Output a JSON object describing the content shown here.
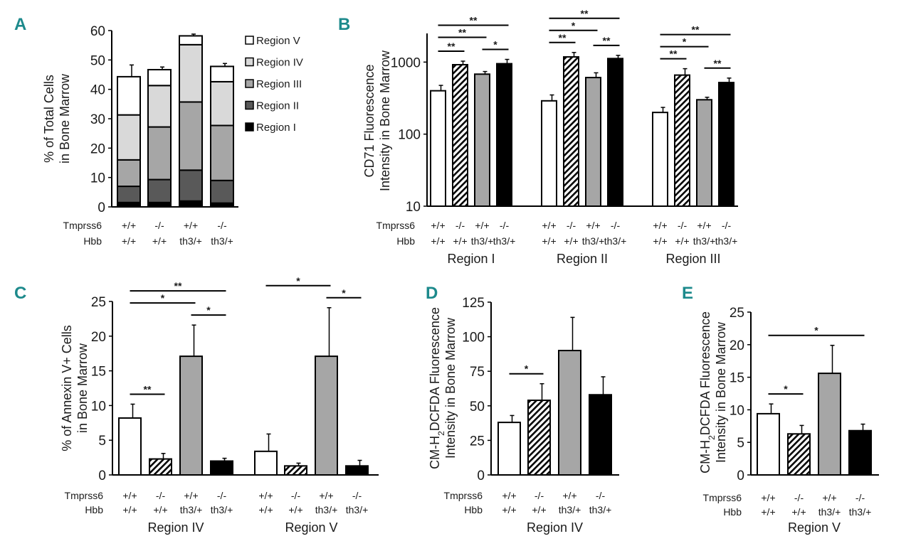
{
  "genotypes": {
    "row_labels": [
      "Tmprss6",
      "Hbb"
    ],
    "tmprss6": [
      "+/+",
      "-/-",
      "+/+",
      "-/-"
    ],
    "hbb": [
      "+/+",
      "+/+",
      "th3/+",
      "th3/+"
    ]
  },
  "colors": {
    "white": "#ffffff",
    "hatched": "#000000",
    "gray": "#a6a6a6",
    "black": "#000000",
    "letter": "#1d8a8c"
  },
  "chart_data": [
    {
      "panel": "A",
      "type": "bar",
      "stacked": true,
      "ylabel": [
        "% of Total Cells",
        "in Bone Marrow"
      ],
      "ylim": [
        0,
        60
      ],
      "yticks": [
        0,
        10,
        20,
        30,
        40,
        50,
        60
      ],
      "legend": [
        "Region V",
        "Region IV",
        "Region III",
        "Region II",
        "Region I"
      ],
      "legend_placement": "right",
      "series": [
        {
          "name": "Region I",
          "color": "#000000",
          "values": [
            1.5,
            1.5,
            2.0,
            1.3
          ],
          "errors": [
            0.3,
            0.2,
            0.3,
            0.2
          ]
        },
        {
          "name": "Region II",
          "color": "#595959",
          "values": [
            5.5,
            7.8,
            10.5,
            7.7
          ],
          "errors": [
            0.9,
            0.7,
            0.9,
            1.0
          ]
        },
        {
          "name": "Region III",
          "color": "#a6a6a6",
          "values": [
            9.0,
            17.9,
            23.2,
            18.7
          ],
          "errors": [
            0.6,
            1.1,
            2.6,
            0.6
          ]
        },
        {
          "name": "Region IV",
          "color": "#d9d9d9",
          "values": [
            15.3,
            14.1,
            19.5,
            14.9
          ],
          "errors": [
            0.7,
            2.5,
            1.5,
            3.4
          ]
        },
        {
          "name": "Region V",
          "color": "#ffffff",
          "values": [
            13.0,
            5.4,
            3.0,
            5.2
          ],
          "errors": [
            4.0,
            0.9,
            0.6,
            1.0
          ]
        }
      ]
    },
    {
      "panel": "B",
      "type": "bar",
      "yscale": "log",
      "ylabel": [
        "CD71 Fluorescence",
        "Intensity in Bone Marrow"
      ],
      "ylim": [
        10,
        2500
      ],
      "yticks": [
        10,
        100,
        1000
      ],
      "groups": [
        {
          "name": "Region I",
          "values": [
            400,
            920,
            680,
            950
          ],
          "errors": [
            75,
            110,
            60,
            140
          ],
          "annotations": [
            {
              "from": 0,
              "to": 1,
              "label": "**"
            },
            {
              "from": 2,
              "to": 3,
              "label": "*"
            },
            {
              "from": 0,
              "to": 2,
              "label": "**"
            },
            {
              "from": 0,
              "to": 3,
              "label": "**"
            }
          ]
        },
        {
          "name": "Region II",
          "values": [
            290,
            1180,
            610,
            1120
          ],
          "errors": [
            60,
            180,
            100,
            120
          ],
          "annotations": [
            {
              "from": 0,
              "to": 1,
              "label": "**"
            },
            {
              "from": 2,
              "to": 3,
              "label": "**"
            },
            {
              "from": 0,
              "to": 2,
              "label": "*"
            },
            {
              "from": 0,
              "to": 3,
              "label": "**"
            }
          ]
        },
        {
          "name": "Region III",
          "values": [
            200,
            660,
            300,
            520
          ],
          "errors": [
            35,
            150,
            25,
            80
          ],
          "annotations": [
            {
              "from": 2,
              "to": 3,
              "label": "**"
            },
            {
              "from": 0,
              "to": 1,
              "label": "**"
            },
            {
              "from": 0,
              "to": 2,
              "label": "*"
            },
            {
              "from": 0,
              "to": 3,
              "label": "**"
            }
          ]
        }
      ]
    },
    {
      "panel": "C",
      "type": "bar",
      "ylabel": [
        "% of Annexin V+ Cells",
        "in Bone Marrow"
      ],
      "ylim": [
        0,
        25
      ],
      "yticks": [
        0,
        5,
        10,
        15,
        20,
        25
      ],
      "groups": [
        {
          "name": "Region IV",
          "values": [
            8.2,
            2.3,
            17.1,
            2.0
          ],
          "errors": [
            2.0,
            0.8,
            4.5,
            0.4
          ],
          "annotations": [
            {
              "from": 0,
              "to": 1,
              "label": "**"
            },
            {
              "from": 2,
              "to": 3,
              "label": "*"
            },
            {
              "from": 0,
              "to": 2,
              "label": "*"
            },
            {
              "from": 0,
              "to": 3,
              "label": "**"
            }
          ]
        },
        {
          "name": "Region V",
          "values": [
            3.4,
            1.3,
            17.1,
            1.3
          ],
          "errors": [
            2.5,
            0.4,
            7.0,
            0.8
          ],
          "annotations": [
            {
              "from": 2,
              "to": 3,
              "label": "*"
            },
            {
              "from": 0,
              "to": 2,
              "label": "*"
            }
          ]
        }
      ]
    },
    {
      "panel": "D",
      "type": "bar",
      "ylabel": [
        "CM-H",
        "2",
        "DCFDA Fluorescence",
        "Intensity in Bone Marrow"
      ],
      "ylim": [
        0,
        125
      ],
      "yticks": [
        0,
        25,
        50,
        75,
        100,
        125
      ],
      "groups": [
        {
          "name": "Region IV",
          "values": [
            38,
            54,
            90,
            58
          ],
          "errors": [
            5,
            12,
            24,
            13
          ],
          "annotations": [
            {
              "from": 0,
              "to": 1,
              "label": "*"
            }
          ]
        }
      ]
    },
    {
      "panel": "E",
      "type": "bar",
      "ylabel": [
        "CM-H",
        "2",
        "DCFDA Fluorescence",
        "Intensity in Bone Marrow"
      ],
      "ylim": [
        0,
        25
      ],
      "yticks": [
        0,
        5,
        10,
        15,
        20,
        25
      ],
      "groups": [
        {
          "name": "Region V",
          "values": [
            9.4,
            6.3,
            15.6,
            6.8
          ],
          "errors": [
            1.5,
            1.3,
            4.3,
            1.0
          ],
          "annotations": [
            {
              "from": 0,
              "to": 1,
              "label": "*"
            },
            {
              "from": 0,
              "to": 3,
              "label": "*"
            }
          ]
        }
      ]
    }
  ]
}
